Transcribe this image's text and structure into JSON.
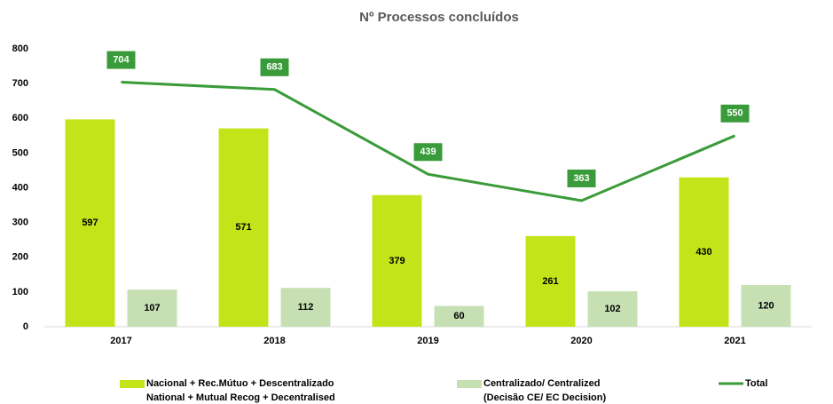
{
  "chart_data": {
    "type": "bar_line",
    "title": "Nº Processos concluídos",
    "categories": [
      "2017",
      "2018",
      "2019",
      "2020",
      "2021"
    ],
    "series": [
      {
        "name": [
          "Nacional +  Rec.Mútuo + Descentralizado",
          "National + Mutual Recog + Decentralised"
        ],
        "type": "bar",
        "color": "#c4e41a",
        "values": [
          597,
          571,
          379,
          261,
          430
        ]
      },
      {
        "name": [
          "Centralizado/ Centralized",
          "(Decisão CE/ EC Decision)"
        ],
        "type": "bar",
        "color": "#c6e0b4",
        "values": [
          107,
          112,
          60,
          102,
          120
        ]
      },
      {
        "name": [
          "Total"
        ],
        "type": "line",
        "color": "#3a9b3a",
        "values": [
          704,
          683,
          439,
          363,
          550
        ]
      }
    ],
    "ylim": [
      0,
      800
    ],
    "yticks": [
      0,
      100,
      200,
      300,
      400,
      500,
      600,
      700,
      800
    ],
    "grid": false,
    "legend": "bottom"
  }
}
